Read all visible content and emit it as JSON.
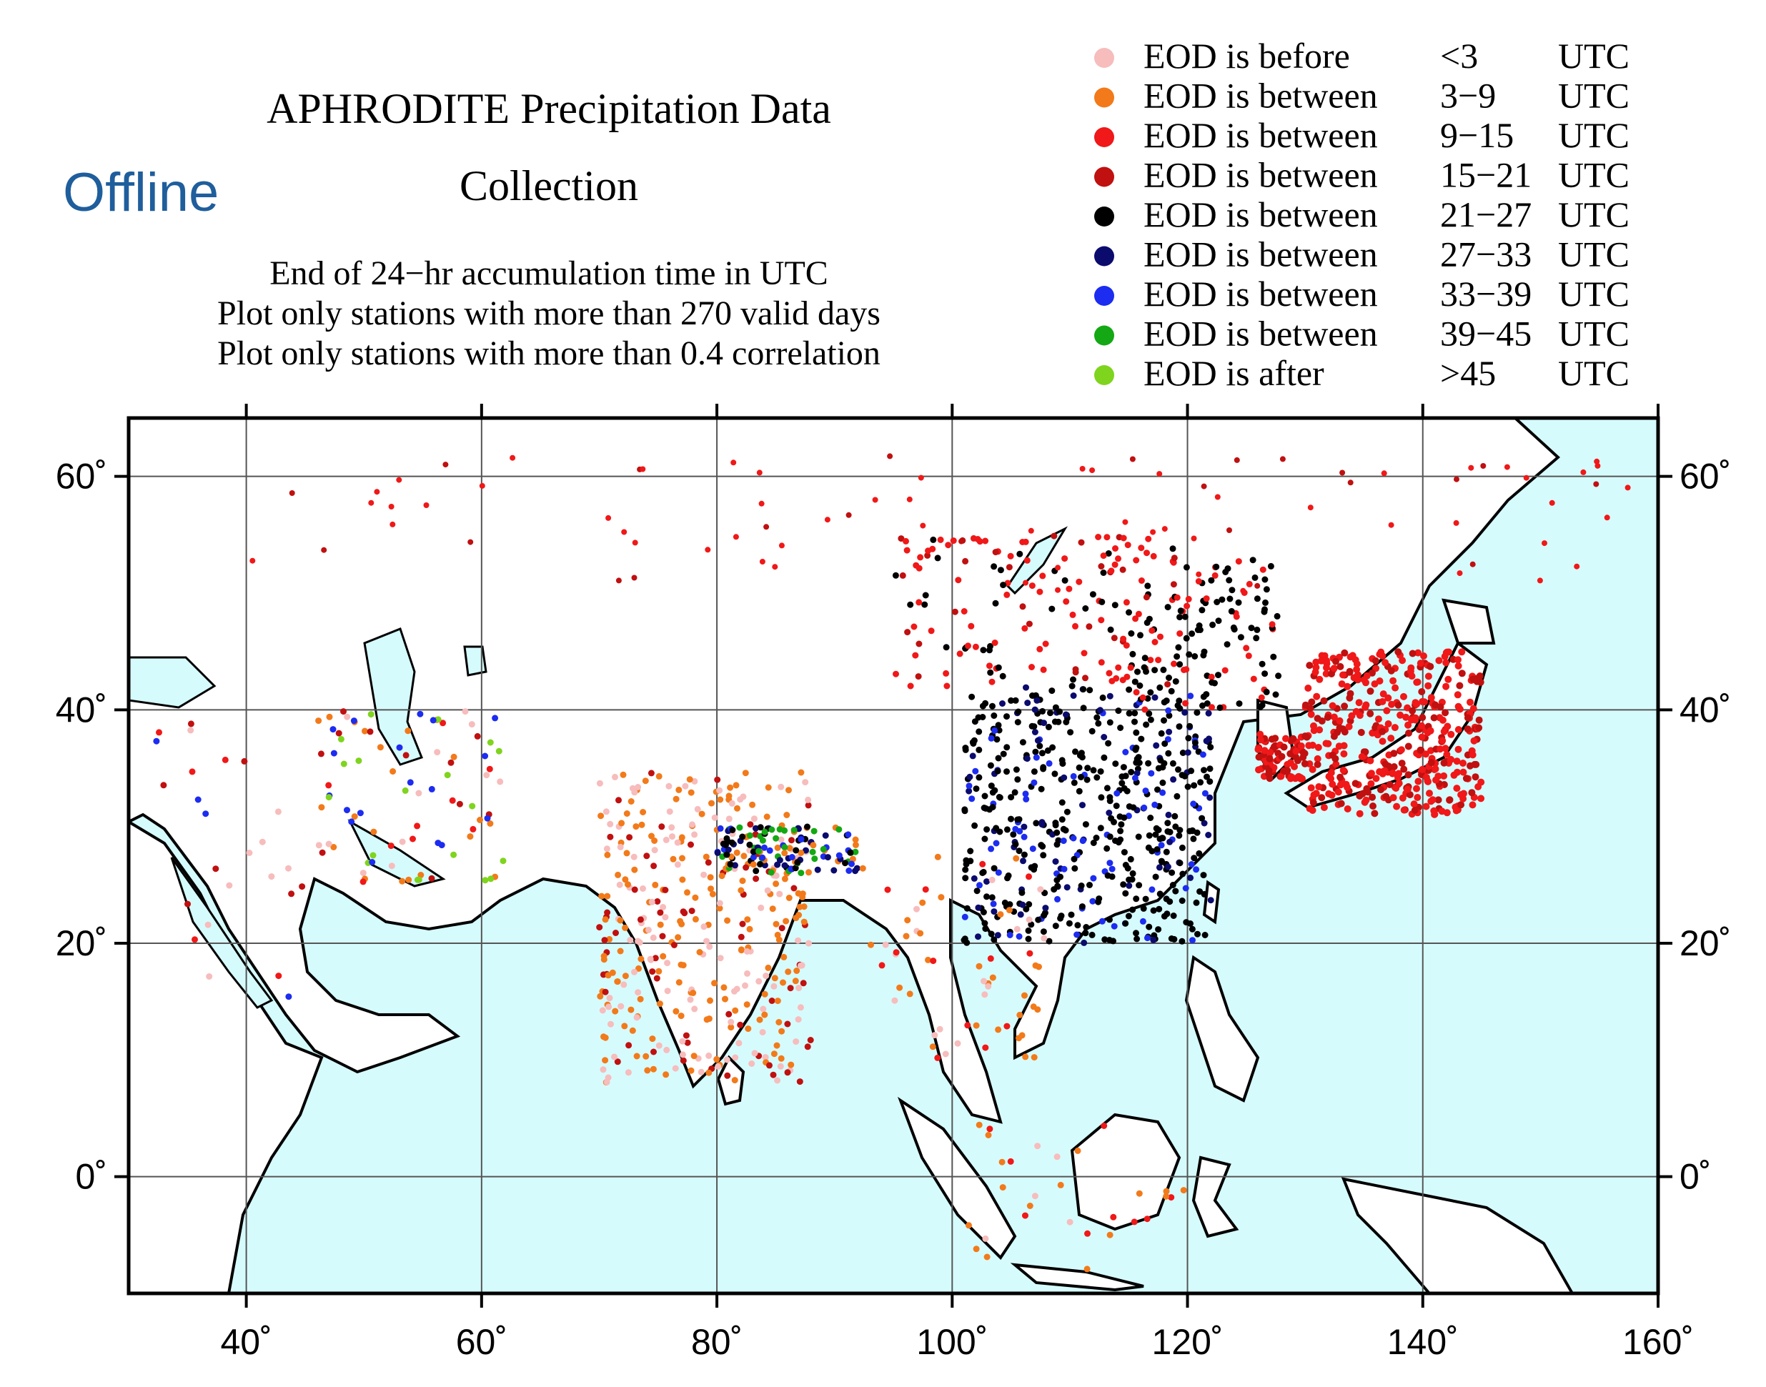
{
  "overlay_label": "Offline",
  "title_line1": "APHRODITE Precipitation Data",
  "title_line2": "Collection",
  "subtitle_lines": [
    "End of 24−hr accumulation time in UTC",
    "Plot only stations with more than 270 valid days",
    "Plot only stations with more than 0.4 correlation"
  ],
  "legend": [
    {
      "label": "EOD is before",
      "range": "<3",
      "unit": "UTC",
      "color": "#f7bcbc"
    },
    {
      "label": "EOD is between",
      "range": "3−9",
      "unit": "UTC",
      "color": "#f27a1a"
    },
    {
      "label": "EOD is between",
      "range": "9−15",
      "unit": "UTC",
      "color": "#f01818"
    },
    {
      "label": "EOD is between",
      "range": "15−21",
      "unit": "UTC",
      "color": "#c01010"
    },
    {
      "label": "EOD is between",
      "range": "21−27",
      "unit": "UTC",
      "color": "#000000"
    },
    {
      "label": "EOD is between",
      "range": "27−33",
      "unit": "UTC",
      "color": "#0b0b6e"
    },
    {
      "label": "EOD is between",
      "range": "33−39",
      "unit": "UTC",
      "color": "#1c2cf0"
    },
    {
      "label": "EOD is between",
      "range": "39−45",
      "unit": "UTC",
      "color": "#14a814"
    },
    {
      "label": "EOD is after",
      "range": ">45",
      "unit": "UTC",
      "color": "#7fd41e"
    }
  ],
  "map": {
    "lon_range": [
      30,
      160
    ],
    "lat_range": [
      -10,
      65
    ],
    "x_ticks": [
      "40˚",
      "60˚",
      "80˚",
      "100˚",
      "120˚",
      "140˚",
      "160˚"
    ],
    "y_ticks": [
      "60˚",
      "40˚",
      "20˚",
      "0˚"
    ],
    "ocean_color": "#d6fbfd",
    "land_color": "#ffffff",
    "grid": true
  }
}
